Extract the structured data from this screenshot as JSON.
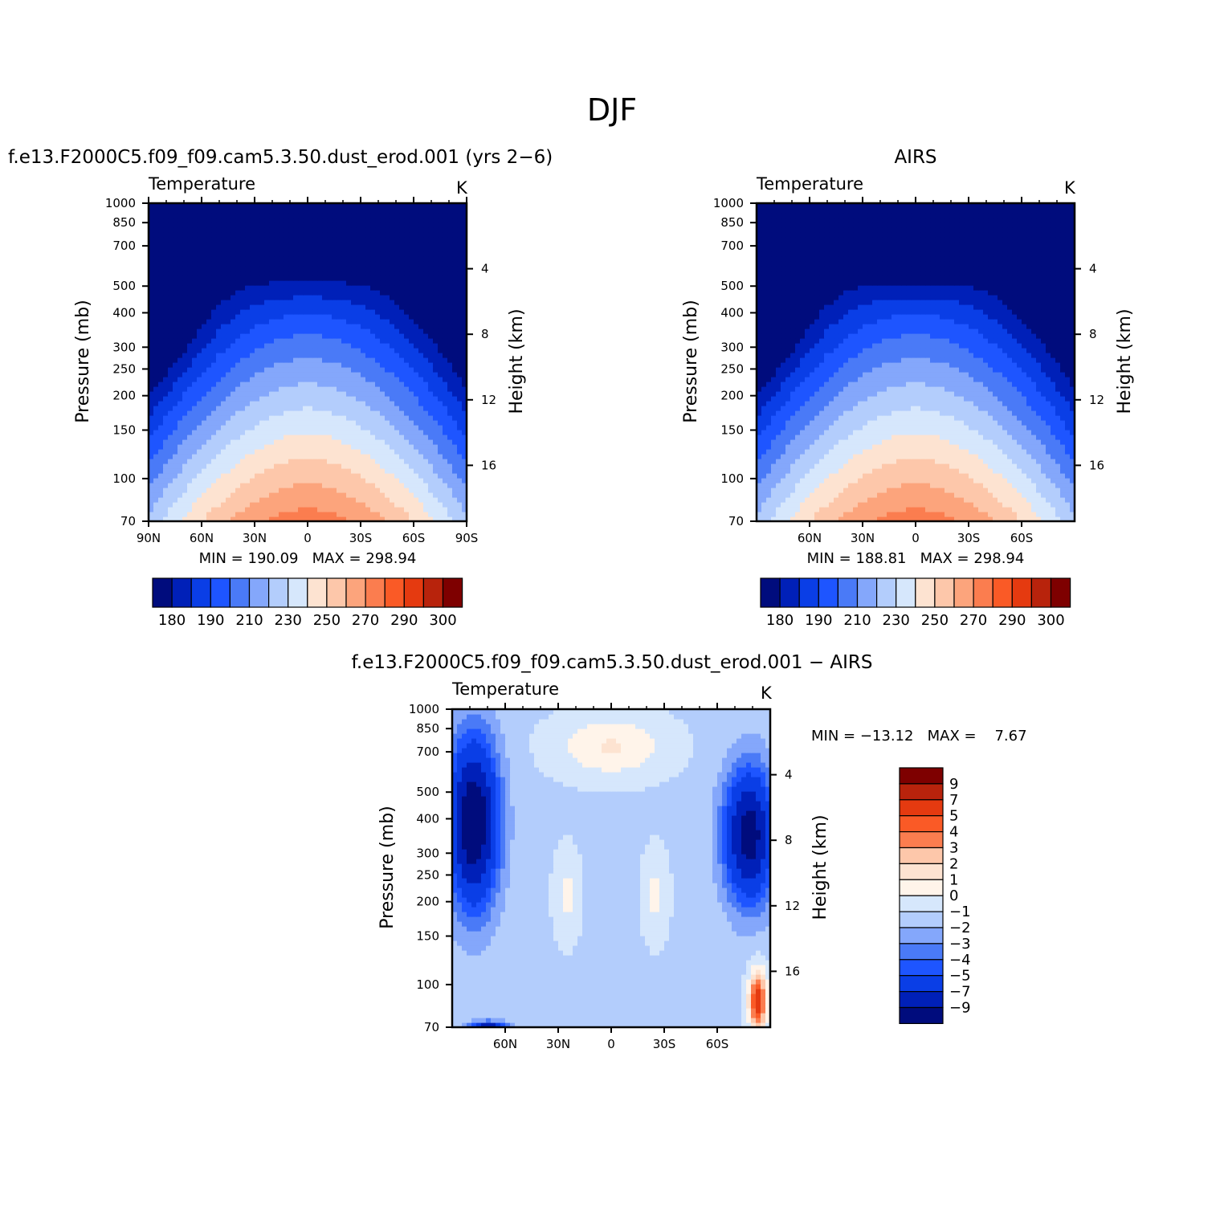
{
  "figure": {
    "title": "DJF"
  },
  "chart_data": [
    {
      "type": "heatmap",
      "title": "f.e13.F2000C5.f09_f09.cam5.3.50.dust_erod.001 (yrs 2−6)",
      "variable": "Temperature",
      "units": "K",
      "ylabel": "Pressure (mb)",
      "ylabel_right": "Height (km)",
      "x_ticks": [
        "90N",
        "60N",
        "30N",
        "0",
        "30S",
        "60S",
        "90S"
      ],
      "y_ticks": [
        "70",
        "100",
        "150",
        "200",
        "250",
        "300",
        "400",
        "500",
        "700",
        "850",
        "1000"
      ],
      "y_ticks_right": [
        "16",
        "12",
        "8",
        "4"
      ],
      "stats": "MIN = 190.09   MAX = 298.94",
      "colorbar_labels": [
        "180",
        "190",
        "210",
        "230",
        "250",
        "270",
        "290",
        "300"
      ],
      "colorbar_colors": [
        "#000c7d",
        "#0020b8",
        "#0a3ee6",
        "#1e55ff",
        "#4a7af7",
        "#84a7fb",
        "#b3cdfc",
        "#d6e7fc",
        "#fde3d1",
        "#fdc7aa",
        "#fca47c",
        "#fb7d4f",
        "#fa5a26",
        "#e53a10",
        "#b8230c",
        "#7e0000"
      ],
      "x_range": [
        "90N",
        "90S"
      ],
      "y_range": [
        1000,
        70
      ],
      "y_scale": "log",
      "grid": false,
      "legend": "bottom"
    },
    {
      "type": "heatmap",
      "title": "AIRS",
      "variable": "Temperature",
      "units": "K",
      "ylabel": "Pressure (mb)",
      "ylabel_right": "Height (km)",
      "x_ticks": [
        "60N",
        "30N",
        "0",
        "30S",
        "60S"
      ],
      "y_ticks": [
        "70",
        "100",
        "150",
        "200",
        "250",
        "300",
        "400",
        "500",
        "700",
        "850",
        "1000"
      ],
      "y_ticks_right": [
        "16",
        "12",
        "8",
        "4"
      ],
      "stats": "MIN = 188.81   MAX = 298.94",
      "colorbar_labels": [
        "180",
        "190",
        "210",
        "230",
        "250",
        "270",
        "290",
        "300"
      ],
      "colorbar_colors": [
        "#000c7d",
        "#0020b8",
        "#0a3ee6",
        "#1e55ff",
        "#4a7af7",
        "#84a7fb",
        "#b3cdfc",
        "#d6e7fc",
        "#fde3d1",
        "#fdc7aa",
        "#fca47c",
        "#fb7d4f",
        "#fa5a26",
        "#e53a10",
        "#b8230c",
        "#7e0000"
      ],
      "y_range": [
        1000,
        70
      ],
      "y_scale": "log",
      "grid": false,
      "legend": "bottom"
    },
    {
      "type": "heatmap",
      "title": "f.e13.F2000C5.f09_f09.cam5.3.50.dust_erod.001 − AIRS",
      "variable": "Temperature",
      "units": "K",
      "ylabel": "Pressure (mb)",
      "ylabel_right": "Height (km)",
      "x_ticks": [
        "60N",
        "30N",
        "0",
        "30S",
        "60S"
      ],
      "y_ticks": [
        "70",
        "100",
        "150",
        "200",
        "250",
        "300",
        "400",
        "500",
        "700",
        "850",
        "1000"
      ],
      "y_ticks_right": [
        "16",
        "12",
        "8",
        "4"
      ],
      "stats": "MIN = −13.12   MAX =    7.67",
      "colorbar_labels": [
        "9",
        "7",
        "5",
        "4",
        "3",
        "2",
        "1",
        "0",
        "−1",
        "−2",
        "−3",
        "−4",
        "−5",
        "−7",
        "−9"
      ],
      "colorbar_colors": [
        "#7e0000",
        "#b8230c",
        "#e53a10",
        "#fa5a26",
        "#fb7d4f",
        "#fdc7aa",
        "#fde3d1",
        "#fff4ea",
        "#d6e7fc",
        "#b3cdfc",
        "#84a7fb",
        "#4a7af7",
        "#1e55ff",
        "#0a3ee6",
        "#0020b8",
        "#000c7d"
      ],
      "y_range": [
        1000,
        70
      ],
      "y_scale": "log",
      "grid": false,
      "legend": "right"
    }
  ]
}
